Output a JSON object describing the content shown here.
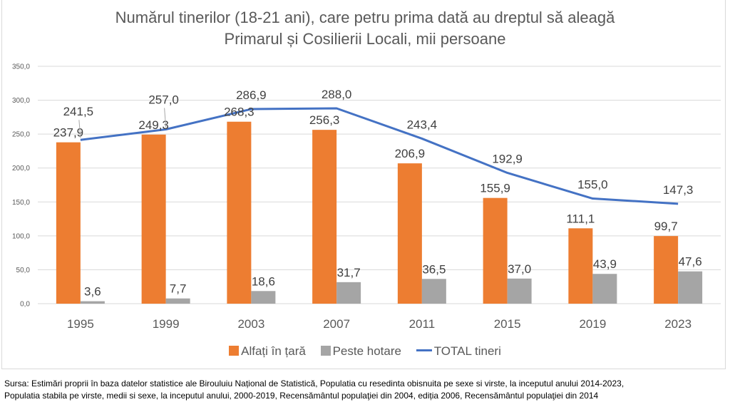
{
  "chart_data": {
    "type": "bar",
    "title_line1": "Numărul tinerilor (18-21 ani), care petru prima dată au dreptul să aleagă",
    "title_line2": "Primarul și Cosilierii Locali, mii persoane",
    "categories": [
      "1995",
      "1999",
      "2003",
      "2007",
      "2011",
      "2015",
      "2019",
      "2023"
    ],
    "series": [
      {
        "name": "Alfați în țară",
        "type": "bar",
        "color": "#ED7D31",
        "values": [
          237.9,
          249.3,
          268.3,
          256.3,
          206.9,
          155.9,
          111.1,
          99.7
        ],
        "labels": [
          "237,9",
          "249,3",
          "268,3",
          "256,3",
          "206,9",
          "155,9",
          "111,1",
          "99,7"
        ]
      },
      {
        "name": "Peste hotare",
        "type": "bar",
        "color": "#A5A5A5",
        "values": [
          3.6,
          7.7,
          18.6,
          31.7,
          36.5,
          37.0,
          43.9,
          47.6
        ],
        "labels": [
          "3,6",
          "7,7",
          "18,6",
          "31,7",
          "36,5",
          "37,0",
          "43,9",
          "47,6"
        ]
      },
      {
        "name": "TOTAL tineri",
        "type": "line",
        "color": "#4472C4",
        "values": [
          241.5,
          257.0,
          286.9,
          288.0,
          243.4,
          192.9,
          155.0,
          147.3
        ],
        "labels": [
          "241,5",
          "257,0",
          "286,9",
          "288,0",
          "243,4",
          "192,9",
          "155,0",
          "147,3"
        ]
      }
    ],
    "yticks": [
      "0,0",
      "50,0",
      "100,0",
      "150,0",
      "200,0",
      "250,0",
      "300,0",
      "350,0"
    ],
    "ylim": [
      0,
      350
    ],
    "xlabel": "",
    "ylabel": "",
    "grid": true,
    "legend_position": "bottom"
  },
  "source_note": {
    "line1": "Sursa: Estimări proprii în baza datelor statistice ale Birouluiu Național de Statistică, Populatia cu resedinta obisnuita pe sexe si virste, la inceputul anului 2014-2023,",
    "line2": "Populatia stabila pe virste, medii si sexe, la inceputul anului, 2000-2019, Recensământul populaţiei din 2004, ediția 2006, Recensământul populaţiei din 2014"
  }
}
